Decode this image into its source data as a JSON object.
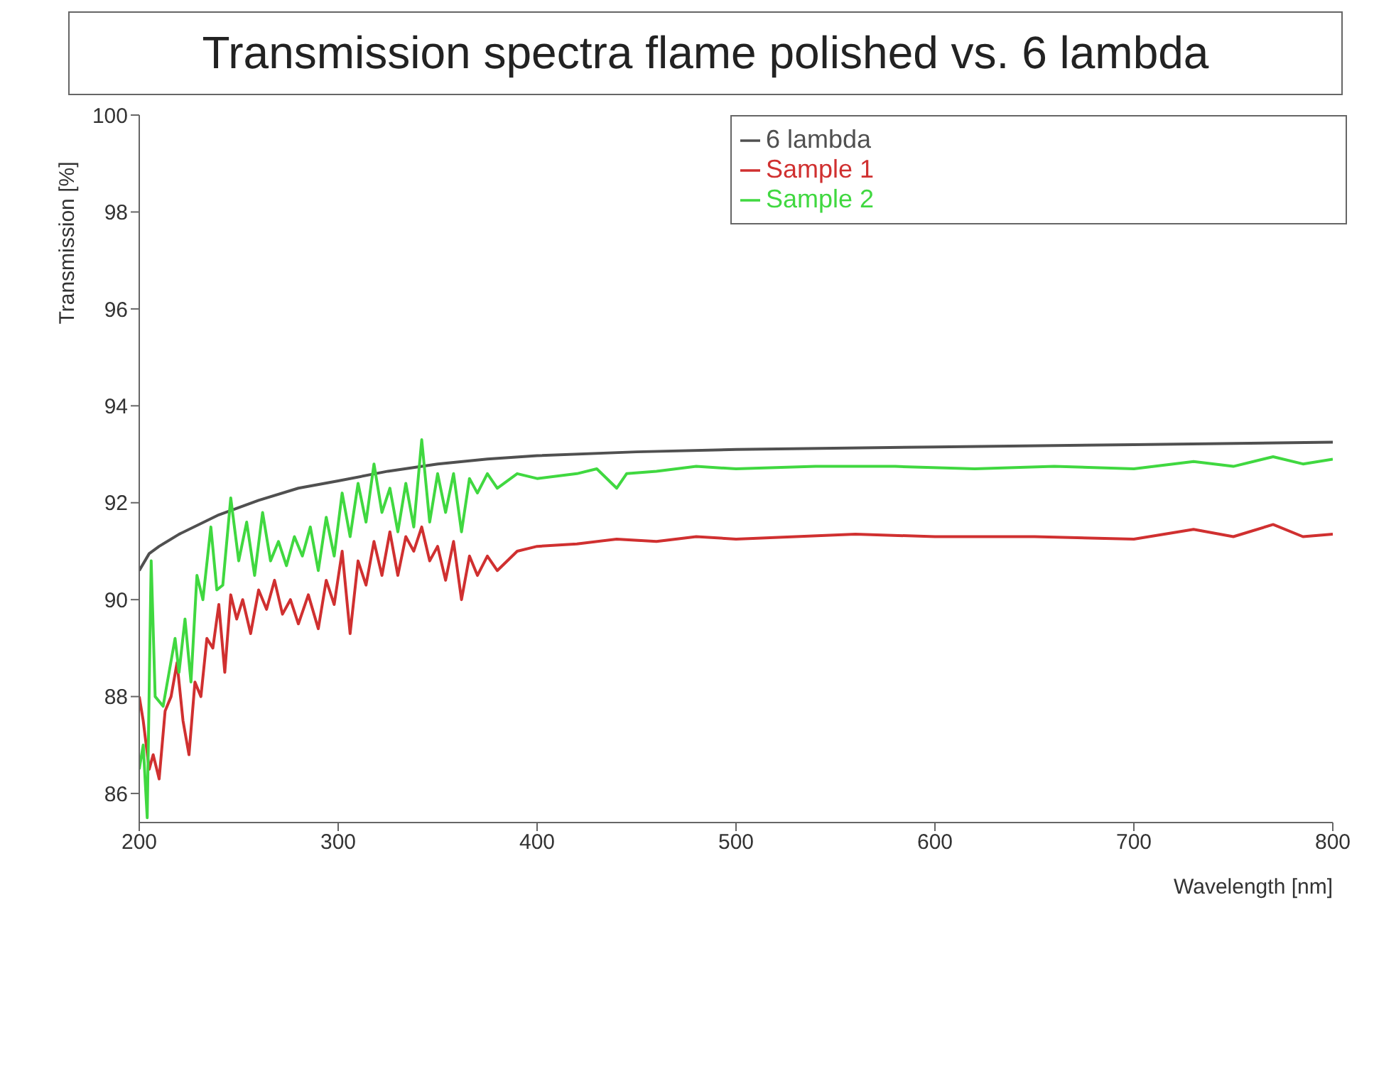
{
  "chart_data": {
    "type": "line",
    "title": "Transmission spectra flame polished vs. 6 lambda",
    "xlabel": "Wavelength [nm]",
    "ylabel": "Transmission [%]",
    "xlim": [
      200,
      800
    ],
    "xticks": [
      200,
      300,
      400,
      500,
      600,
      700,
      800
    ],
    "ylim": [
      85.4,
      100
    ],
    "yticks": [
      86,
      88,
      90,
      92,
      94,
      96,
      98,
      100
    ],
    "grid": false,
    "legend": "top right",
    "marker": "none",
    "line_style": "solid",
    "series": [
      {
        "name": "6 lambda",
        "color": "#505050",
        "x": [
          200,
          205,
          210,
          220,
          240,
          260,
          280,
          300,
          325,
          350,
          375,
          400,
          450,
          500,
          600,
          700,
          800
        ],
        "values": [
          90.6,
          90.95,
          91.1,
          91.35,
          91.75,
          92.05,
          92.3,
          92.45,
          92.65,
          92.8,
          92.9,
          92.97,
          93.05,
          93.1,
          93.15,
          93.2,
          93.25
        ]
      },
      {
        "name": "Sample 1",
        "color": "#d03030",
        "x": [
          200,
          202,
          205,
          207,
          210,
          213,
          216,
          219,
          222,
          225,
          228,
          231,
          234,
          237,
          240,
          243,
          246,
          249,
          252,
          256,
          260,
          264,
          268,
          272,
          276,
          280,
          285,
          290,
          294,
          298,
          302,
          306,
          310,
          314,
          318,
          322,
          326,
          330,
          334,
          338,
          342,
          346,
          350,
          354,
          358,
          362,
          366,
          370,
          375,
          380,
          390,
          400,
          420,
          440,
          460,
          480,
          500,
          530,
          560,
          600,
          650,
          700,
          730,
          750,
          770,
          785,
          800
        ],
        "values": [
          88.0,
          87.5,
          86.5,
          86.8,
          86.3,
          87.7,
          88.0,
          88.7,
          87.5,
          86.8,
          88.3,
          88.0,
          89.2,
          89.0,
          89.9,
          88.5,
          90.1,
          89.6,
          90.0,
          89.3,
          90.2,
          89.8,
          90.4,
          89.7,
          90.0,
          89.5,
          90.1,
          89.4,
          90.4,
          89.9,
          91.0,
          89.3,
          90.8,
          90.3,
          91.2,
          90.5,
          91.4,
          90.5,
          91.3,
          91.0,
          91.5,
          90.8,
          91.1,
          90.4,
          91.2,
          90.0,
          90.9,
          90.5,
          90.9,
          90.6,
          91.0,
          91.1,
          91.15,
          91.25,
          91.2,
          91.3,
          91.25,
          91.3,
          91.35,
          91.3,
          91.3,
          91.25,
          91.45,
          91.3,
          91.55,
          91.3,
          91.35
        ]
      },
      {
        "name": "Sample 2",
        "color": "#40d840",
        "x": [
          200,
          202,
          204,
          206,
          208,
          212,
          215,
          218,
          220,
          223,
          226,
          229,
          232,
          236,
          239,
          242,
          246,
          250,
          254,
          258,
          262,
          266,
          270,
          274,
          278,
          282,
          286,
          290,
          294,
          298,
          302,
          306,
          310,
          314,
          318,
          322,
          326,
          330,
          334,
          338,
          342,
          346,
          350,
          354,
          358,
          362,
          366,
          370,
          375,
          380,
          390,
          400,
          420,
          430,
          440,
          445,
          460,
          480,
          500,
          540,
          580,
          620,
          660,
          700,
          730,
          750,
          770,
          785,
          800
        ],
        "values": [
          86.5,
          87.0,
          85.5,
          90.8,
          88.0,
          87.8,
          88.5,
          89.2,
          88.5,
          89.6,
          88.3,
          90.5,
          90.0,
          91.5,
          90.2,
          90.3,
          92.1,
          90.8,
          91.6,
          90.5,
          91.8,
          90.8,
          91.2,
          90.7,
          91.3,
          90.9,
          91.5,
          90.6,
          91.7,
          90.9,
          92.2,
          91.3,
          92.4,
          91.6,
          92.8,
          91.8,
          92.3,
          91.4,
          92.4,
          91.5,
          93.3,
          91.6,
          92.6,
          91.8,
          92.6,
          91.4,
          92.5,
          92.2,
          92.6,
          92.3,
          92.6,
          92.5,
          92.6,
          92.7,
          92.3,
          92.6,
          92.65,
          92.75,
          92.7,
          92.75,
          92.75,
          92.7,
          92.75,
          92.7,
          92.85,
          92.75,
          92.95,
          92.8,
          92.9
        ]
      }
    ]
  }
}
